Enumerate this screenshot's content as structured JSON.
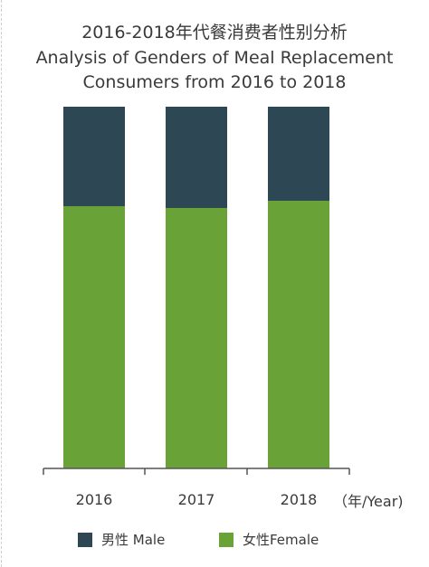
{
  "chart_data": {
    "type": "bar",
    "stacked": true,
    "title_lines": [
      "2016-2018年代餐消费者性别分析",
      "Analysis of Genders of Meal Replacement",
      "Consumers from 2016 to 2018"
    ],
    "categories": [
      "2016",
      "2017",
      "2018"
    ],
    "x_unit": "（年/Year)",
    "series": [
      {
        "name": "女性Female",
        "color": "#69a337",
        "values": [
          72.5,
          72.0,
          74.0
        ]
      },
      {
        "name": "男性 Male",
        "color": "#2e4754",
        "values": [
          27.5,
          28.0,
          26.0
        ]
      }
    ],
    "ylim": [
      0,
      100
    ],
    "grid": false,
    "legend_position": "bottom"
  },
  "legend": {
    "male_label": "男性 Male",
    "female_label": "女性Female"
  }
}
